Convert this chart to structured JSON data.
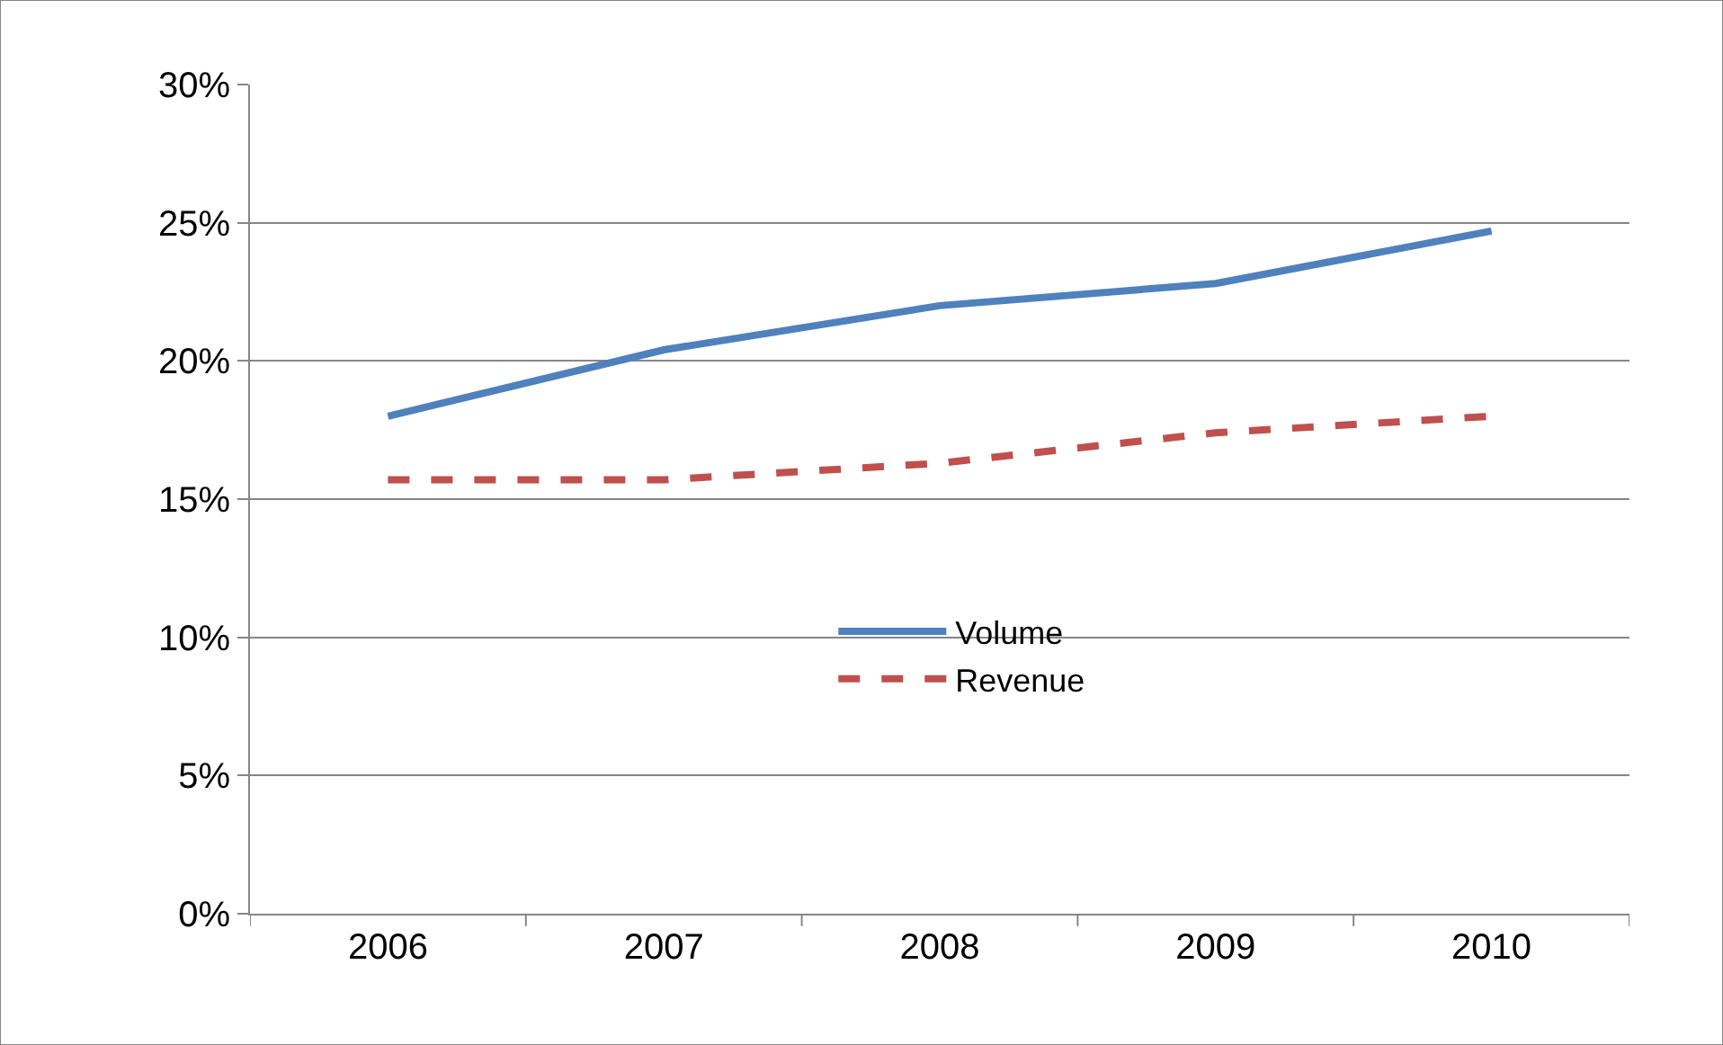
{
  "chart_data": {
    "type": "line",
    "categories": [
      "2006",
      "2007",
      "2008",
      "2009",
      "2010"
    ],
    "series": [
      {
        "name": "Volume",
        "color": "#4f81bd",
        "values": [
          18.0,
          20.4,
          22.0,
          22.8,
          24.7
        ],
        "line_style": "solid"
      },
      {
        "name": "Revenue",
        "color": "#c0504d",
        "values": [
          15.7,
          15.7,
          16.3,
          17.4,
          18.0
        ],
        "line_style": "dashed"
      }
    ],
    "ylim": [
      0,
      30
    ],
    "yticks": [
      {
        "value": 0,
        "label": "0%"
      },
      {
        "value": 5,
        "label": "5%"
      },
      {
        "value": 10,
        "label": "10%"
      },
      {
        "value": 15,
        "label": "15%"
      },
      {
        "value": 20,
        "label": "20%"
      },
      {
        "value": 25,
        "label": "25%"
      },
      {
        "value": 30,
        "label": "30%"
      }
    ],
    "grid": "y",
    "legend": "bottom",
    "marker": "none"
  }
}
